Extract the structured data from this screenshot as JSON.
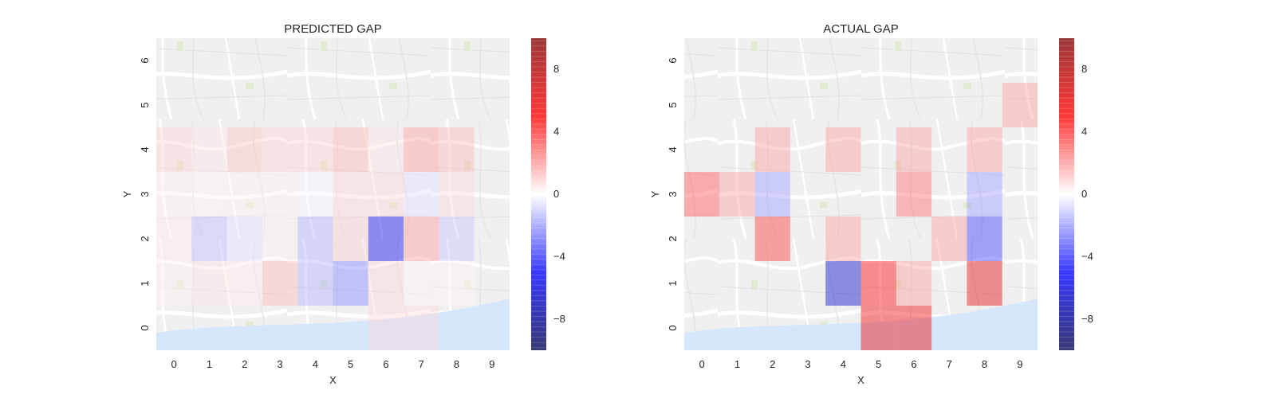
{
  "chart_data": [
    {
      "type": "heatmap",
      "title": "PREDICTED GAP",
      "xlabel": "X",
      "ylabel": "Y",
      "x": [
        0,
        1,
        2,
        3,
        4,
        5,
        6,
        7,
        8,
        9
      ],
      "y": [
        0,
        1,
        2,
        3,
        4,
        5,
        6
      ],
      "background": "map",
      "grid": false,
      "colormap": "seismic",
      "vmin": -10,
      "vmax": 10,
      "colorbar_ticks": [
        8,
        4,
        0,
        -4,
        -8
      ],
      "values": [
        [
          0,
          0,
          0,
          0,
          0,
          0,
          0.8,
          0.7,
          0,
          0
        ],
        [
          0.3,
          0.5,
          0.4,
          1.4,
          -1.6,
          -2.5,
          0.8,
          0.2,
          0.2,
          0
        ],
        [
          0.4,
          -1.4,
          -0.6,
          0.3,
          -1.6,
          1.0,
          -5.5,
          2.0,
          -1.2,
          0
        ],
        [
          0.3,
          0.2,
          0.3,
          0.3,
          -0.2,
          0.8,
          0.8,
          -0.6,
          0.8,
          0
        ],
        [
          0.9,
          0.5,
          1.2,
          0.9,
          0.9,
          1.5,
          0.5,
          2.0,
          1.4,
          0
        ],
        [
          0,
          0,
          0,
          0,
          0,
          0,
          0,
          0,
          0,
          0
        ],
        [
          0,
          0,
          0,
          0,
          0,
          0,
          0,
          0,
          0,
          0
        ]
      ]
    },
    {
      "type": "heatmap",
      "title": "ACTUAL GAP",
      "xlabel": "X",
      "ylabel": "Y",
      "x": [
        0,
        1,
        2,
        3,
        4,
        5,
        6,
        7,
        8,
        9
      ],
      "y": [
        0,
        1,
        2,
        3,
        4,
        5,
        6
      ],
      "background": "map",
      "grid": false,
      "colormap": "seismic",
      "vmin": -10,
      "vmax": 10,
      "colorbar_ticks": [
        8,
        4,
        0,
        -4,
        -8
      ],
      "values": [
        [
          0,
          0,
          0,
          0,
          0,
          5.5,
          5.5,
          0,
          0,
          0
        ],
        [
          0,
          0,
          0,
          0,
          -6.5,
          5.0,
          2.0,
          0,
          6.0,
          0
        ],
        [
          0,
          0,
          4.0,
          0,
          2.0,
          0,
          0,
          2.0,
          -4.0,
          0
        ],
        [
          3.5,
          2.0,
          -2.0,
          0,
          0,
          0,
          3.0,
          0,
          -2.0,
          0
        ],
        [
          0,
          0,
          2.0,
          0,
          2.0,
          0,
          2.0,
          0,
          2.0,
          0
        ],
        [
          0,
          0,
          0,
          0,
          0,
          0,
          0,
          0,
          0,
          2.0
        ],
        [
          0,
          0,
          0,
          0,
          0,
          0,
          0,
          0,
          0,
          0
        ]
      ]
    }
  ]
}
